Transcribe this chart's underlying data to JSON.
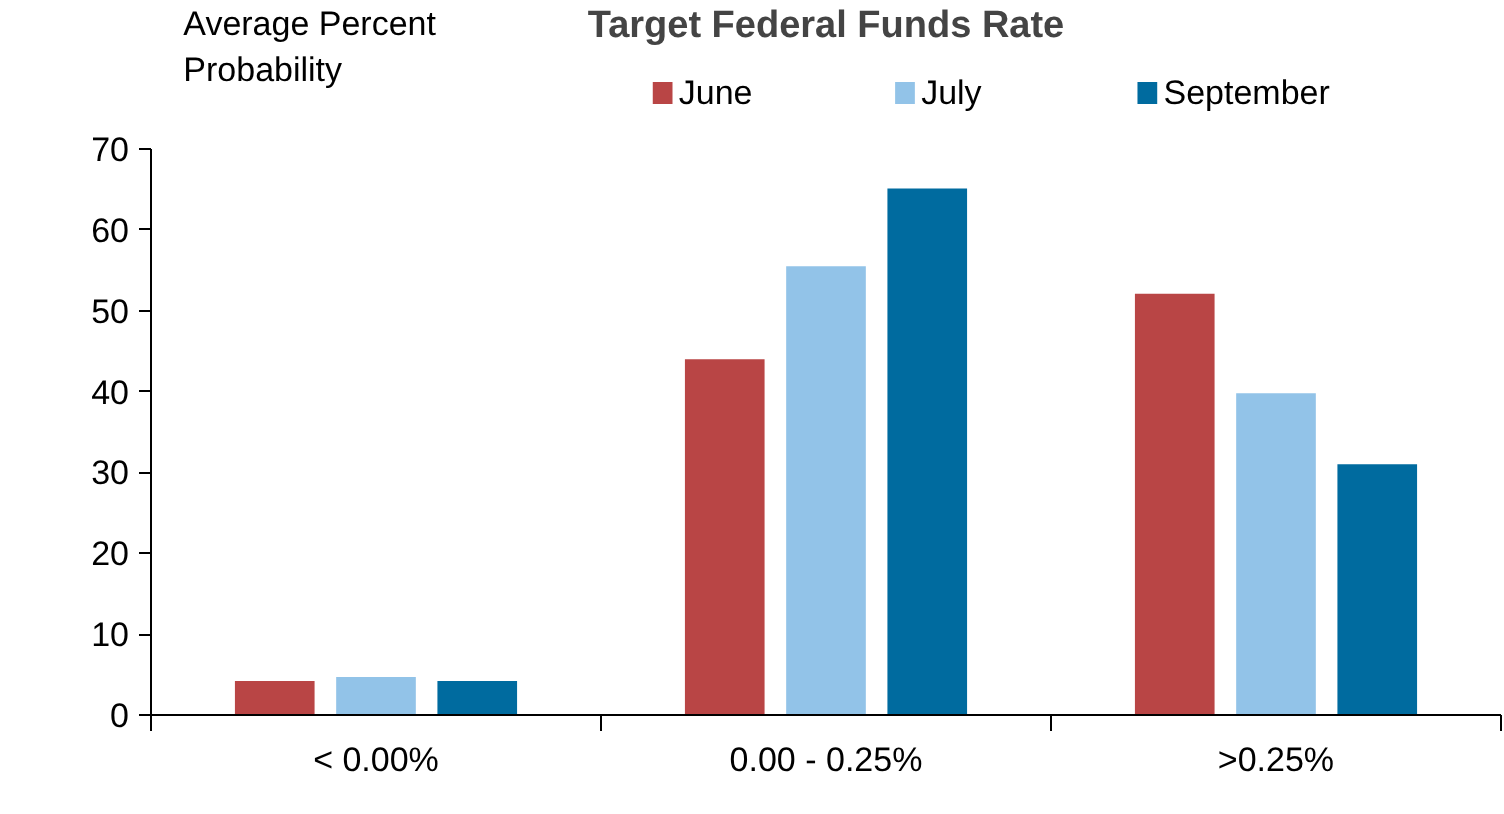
{
  "chart_data": {
    "type": "bar",
    "title": "Target Federal Funds Rate",
    "ylabel": "Average Percent\nProbability",
    "categories": [
      "< 0.00%",
      "0.00 - 0.25%",
      ">0.25%"
    ],
    "series": [
      {
        "name": "June",
        "color": "#b94545",
        "values": [
          4.2,
          44,
          52.1
        ]
      },
      {
        "name": "July",
        "color": "#92c3e8",
        "values": [
          4.7,
          55.5,
          39.8
        ]
      },
      {
        "name": "September",
        "color": "#006b9f",
        "values": [
          4.2,
          65.1,
          31
        ]
      }
    ],
    "ylim": [
      0,
      70
    ],
    "yticks": [
      0,
      10,
      20,
      30,
      40,
      50,
      60,
      70
    ],
    "grid": false,
    "legend": "top"
  }
}
